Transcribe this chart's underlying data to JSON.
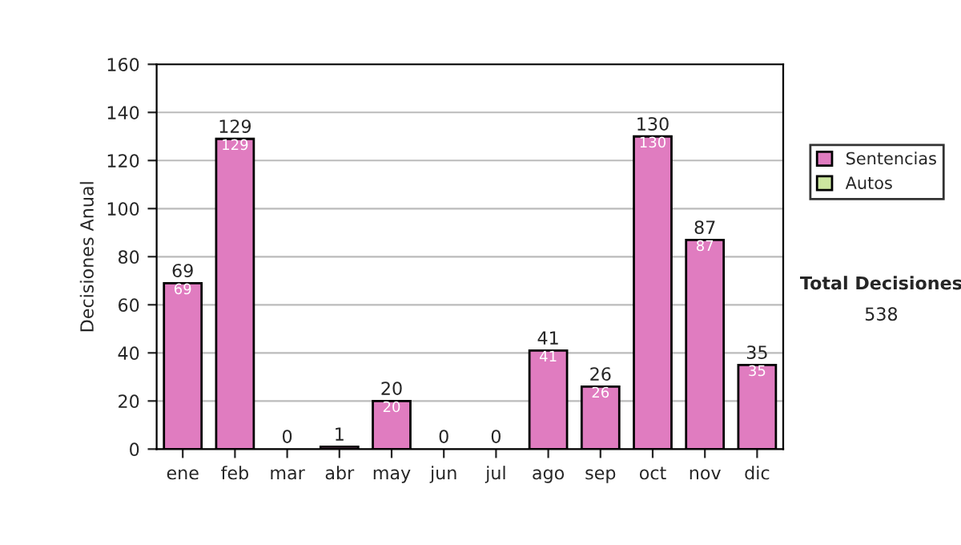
{
  "chart_data": {
    "type": "bar",
    "ylabel": "Decisiones Anual",
    "categories": [
      "ene",
      "feb",
      "mar",
      "abr",
      "may",
      "jun",
      "jul",
      "ago",
      "sep",
      "oct",
      "nov",
      "dic"
    ],
    "stacked": true,
    "series": [
      {
        "name": "Sentencias",
        "color": "#e07cc0",
        "values": [
          69,
          129,
          0,
          1,
          20,
          0,
          0,
          41,
          26,
          130,
          87,
          35
        ],
        "value_labels": [
          "69",
          "129",
          null,
          null,
          "20",
          null,
          null,
          "41",
          "26",
          "130",
          "87",
          "35"
        ]
      },
      {
        "name": "Autos",
        "color": "#cce6a0",
        "values": [
          0,
          0,
          0,
          0,
          0,
          0,
          0,
          0,
          0,
          0,
          0,
          0
        ]
      }
    ],
    "totals": [
      "69",
      "129",
      "0",
      "1",
      "20",
      "0",
      "0",
      "41",
      "26",
      "130",
      "87",
      "35"
    ],
    "ylim": [
      0,
      160
    ],
    "yticks": [
      0,
      20,
      40,
      60,
      80,
      100,
      120,
      140,
      160
    ],
    "grid": "y",
    "legend": "right",
    "annotations": [
      "Total Decisiones",
      "538"
    ]
  }
}
